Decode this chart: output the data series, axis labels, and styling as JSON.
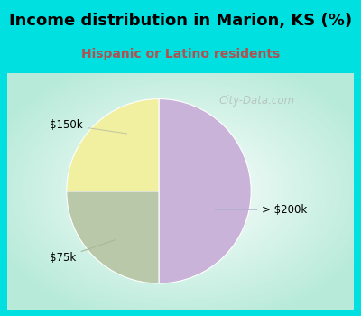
{
  "title": "Income distribution in Marion, KS (%)",
  "subtitle": "Hispanic or Latino residents",
  "slices": [
    {
      "label": "> $200k",
      "value": 50,
      "color": "#c9b3d9"
    },
    {
      "label": "$75k",
      "value": 25,
      "color": "#b8c8a8"
    },
    {
      "label": "$150k",
      "value": 25,
      "color": "#f0f0a0"
    }
  ],
  "title_color": "#000000",
  "subtitle_color": "#b05050",
  "bg_color_top": "#00e0e0",
  "watermark": "City-Data.com",
  "label_200k": "> $200k",
  "label_150k": "$150k",
  "label_75k": "$75k"
}
